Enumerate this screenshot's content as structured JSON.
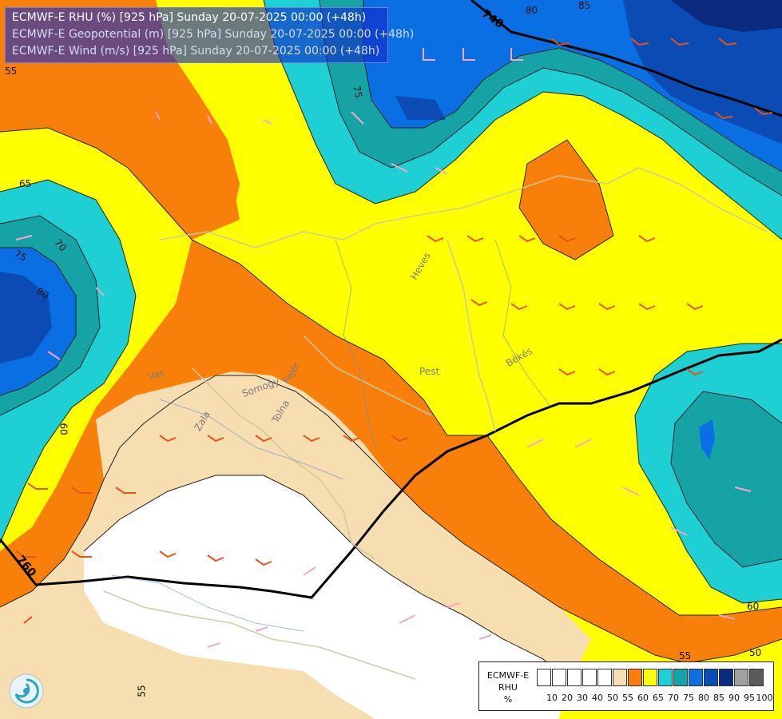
{
  "title": {
    "line1": "ECMWF-E RHU (%) [925 hPa] Sunday 20-07-2025 00:00 (+48h)",
    "line2": "ECMWF-E Geopotential (m) [925 hPa] Sunday 20-07-2025 00:00 (+48h)",
    "line3": "ECMWF-E Wind (m/s) [925 hPa] Sunday 20-07-2025 00:00 (+48h)"
  },
  "legend": {
    "title_line1": "ECMWF-E",
    "title_line2": "RHU",
    "unit": "%",
    "ticks": [
      "10",
      "20",
      "30",
      "40",
      "50",
      "55",
      "60",
      "65",
      "70",
      "75",
      "80",
      "85",
      "90",
      "95",
      "100"
    ],
    "colors": [
      "#ffffff",
      "#ffffff",
      "#ffffff",
      "#ffffff",
      "#ffffff",
      "#f6deb0",
      "#f8800a",
      "#ffff00",
      "#1ecfd3",
      "#16a3a6",
      "#0a6fe2",
      "#0a4bb4",
      "#0a2a7e",
      "#a0a0a0",
      "#5a5a5a"
    ]
  },
  "contour_labels": {
    "rhu": [
      "55",
      "60",
      "65",
      "70",
      "75",
      "80",
      "85",
      "80",
      "75",
      "65",
      "70",
      "75",
      "80",
      "60",
      "55",
      "55",
      "60",
      "50"
    ],
    "geopotential": [
      "740",
      "760"
    ]
  },
  "place_labels": [
    "Heves",
    "Pest",
    "Békés",
    "Vas",
    "Somogy",
    "Zala",
    "Tolna",
    "Fejér"
  ],
  "colors": {
    "rhu_55": "#f6deb0",
    "rhu_60": "#f8800a",
    "rhu_65": "#ffff00",
    "rhu_70": "#1ecfd3",
    "rhu_75": "#16a3a6",
    "rhu_80": "#0a6fe2",
    "rhu_85": "#0a4bb4",
    "rhu_90": "#0a2a7e"
  }
}
